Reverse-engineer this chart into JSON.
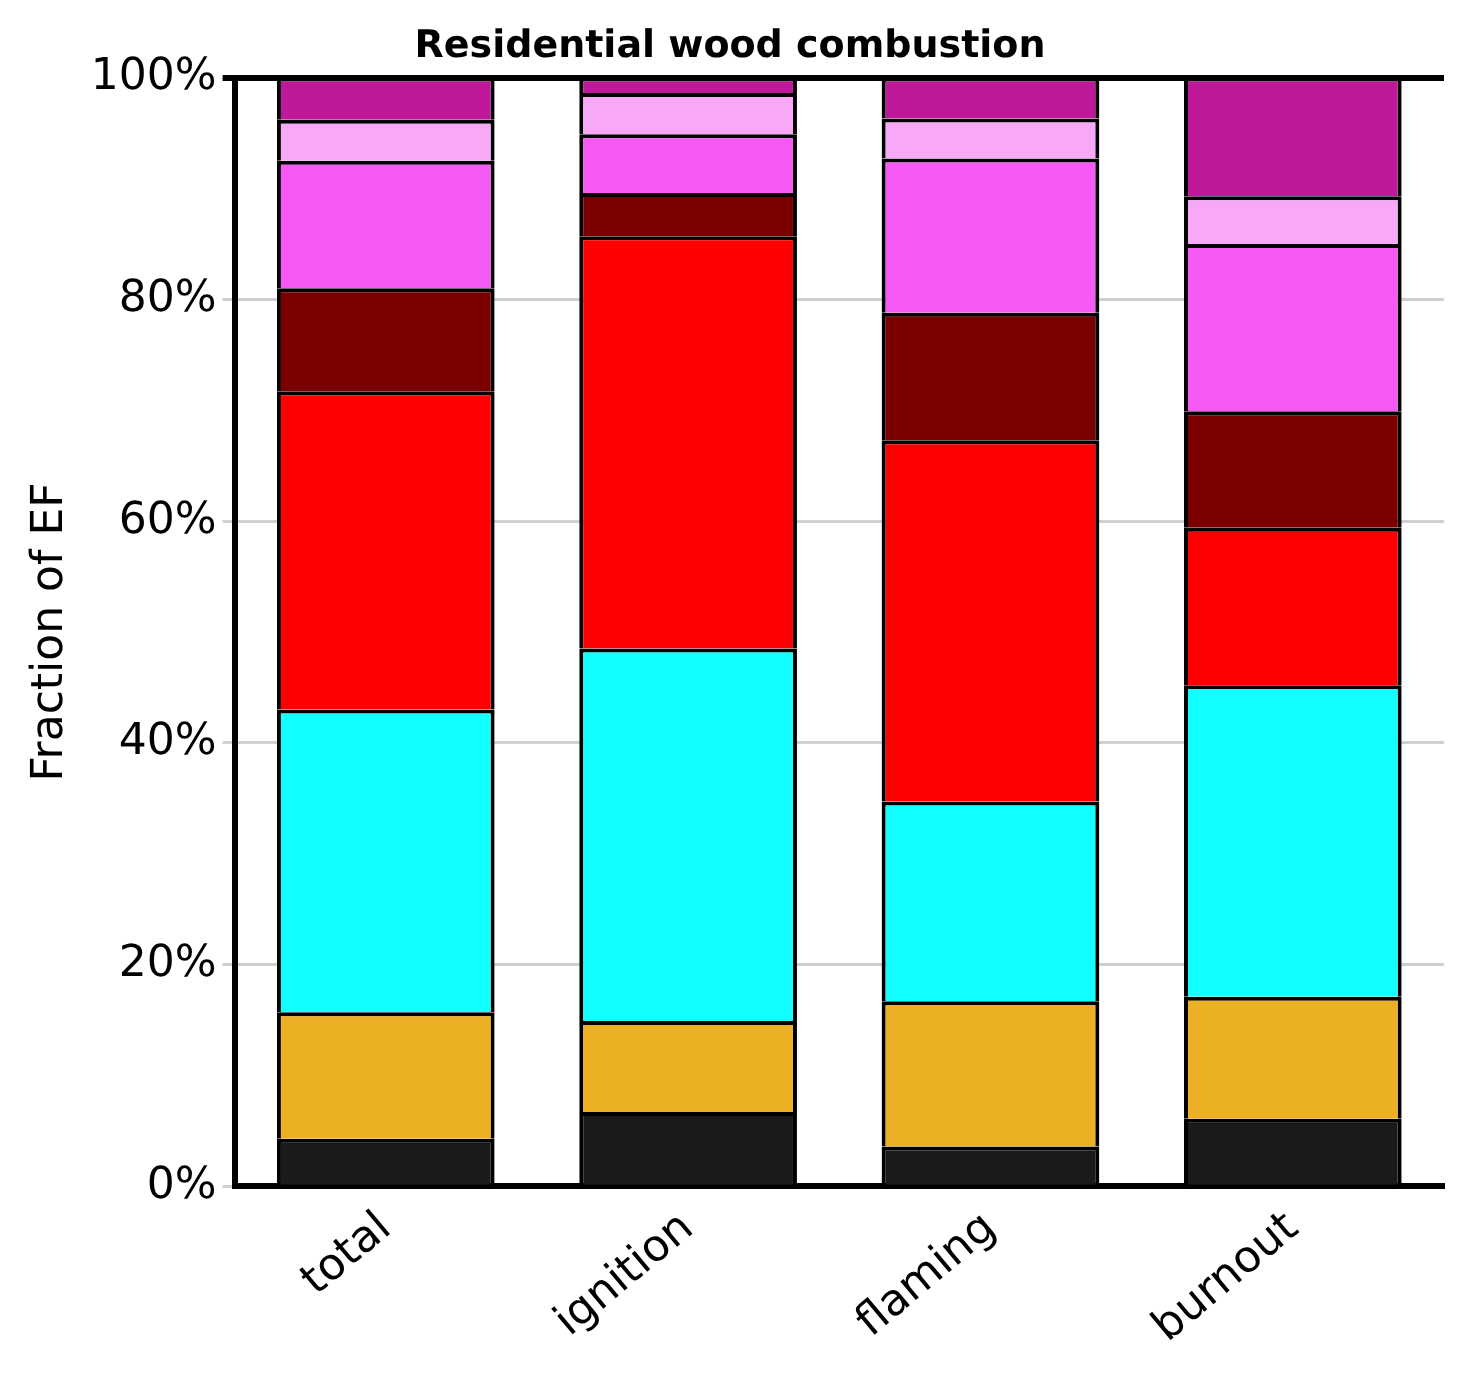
{
  "chart_data": {
    "type": "bar",
    "title": "Residential wood combustion",
    "ylabel": "Fraction of EF",
    "categories": [
      "total",
      "ignition",
      "flaming",
      "burnout"
    ],
    "stacked": true,
    "grid": "y",
    "legend": false,
    "ylim": [
      0,
      100
    ],
    "yticks": [
      {
        "value": 0,
        "label": "0%"
      },
      {
        "value": 20,
        "label": "20%"
      },
      {
        "value": 40,
        "label": "40%"
      },
      {
        "value": 60,
        "label": "60%"
      },
      {
        "value": 80,
        "label": "80%"
      },
      {
        "value": 100,
        "label": "100%"
      }
    ],
    "series": [
      {
        "color": "#1a1a1a",
        "values": [
          4.3,
          6.7,
          3.6,
          6.1
        ]
      },
      {
        "color": "#ebb024",
        "values": [
          11.4,
          8.2,
          13.1,
          11.0
        ]
      },
      {
        "color": "#12ffff",
        "values": [
          27.3,
          33.6,
          18.0,
          28.1
        ]
      },
      {
        "color": "#ff0000",
        "values": [
          28.7,
          37.2,
          32.6,
          14.2
        ]
      },
      {
        "color": "#7a0000",
        "values": [
          9.3,
          3.9,
          11.5,
          10.5
        ]
      },
      {
        "color": "#f55af5",
        "values": [
          11.5,
          5.3,
          13.9,
          15.1
        ]
      },
      {
        "color": "#f7a8f7",
        "values": [
          3.7,
          3.7,
          3.6,
          4.3
        ]
      },
      {
        "color": "#c0189a",
        "values": [
          3.8,
          1.4,
          3.7,
          10.7
        ]
      }
    ]
  }
}
